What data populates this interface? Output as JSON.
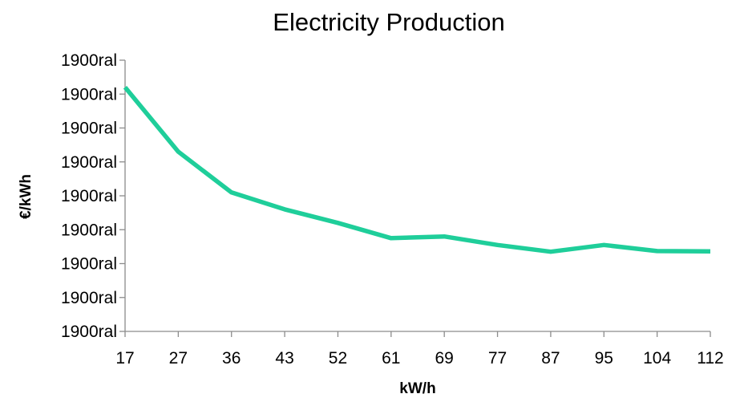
{
  "chart_data": {
    "type": "line",
    "title": "Electricity Production",
    "xlabel": "kW/h",
    "ylabel": "€/kWh",
    "categories": [
      "17",
      "27",
      "36",
      "43",
      "52",
      "61",
      "69",
      "77",
      "87",
      "95",
      "104",
      "112"
    ],
    "y_tick_labels": [
      "1900ral",
      "1900ral",
      "1900ral",
      "1900ral",
      "1900ral",
      "1900ral",
      "1900ral",
      "1900ral",
      "1900ral"
    ],
    "series": [
      {
        "values": [
          7.2,
          5.3,
          4.1,
          3.6,
          3.2,
          2.75,
          2.8,
          2.55,
          2.35,
          2.55,
          2.37,
          2.36
        ],
        "color": "#1fce9a"
      }
    ],
    "ylim": [
      0,
      8
    ],
    "grid": false,
    "legend": "none"
  }
}
